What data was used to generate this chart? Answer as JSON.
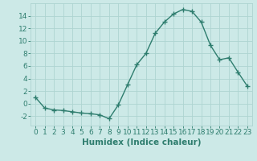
{
  "x": [
    0,
    1,
    2,
    3,
    4,
    5,
    6,
    7,
    8,
    9,
    10,
    11,
    12,
    13,
    14,
    15,
    16,
    17,
    18,
    19,
    20,
    21,
    22,
    23
  ],
  "y": [
    1,
    -0.7,
    -1.0,
    -1.1,
    -1.3,
    -1.5,
    -1.6,
    -1.8,
    -2.4,
    -0.2,
    3.0,
    6.2,
    8.0,
    11.2,
    13.0,
    14.3,
    15.0,
    14.7,
    13.0,
    9.3,
    7.0,
    7.3,
    5.0,
    2.8
  ],
  "line_color": "#2e7d6e",
  "marker": "+",
  "marker_size": 4,
  "marker_linewidth": 1.0,
  "background_color": "#cce9e7",
  "grid_color": "#aed4d1",
  "xlabel": "Humidex (Indice chaleur)",
  "xlabel_fontsize": 7.5,
  "xlim": [
    -0.5,
    23.5
  ],
  "ylim": [
    -3.5,
    16
  ],
  "yticks": [
    -2,
    0,
    2,
    4,
    6,
    8,
    10,
    12,
    14
  ],
  "xticks": [
    0,
    1,
    2,
    3,
    4,
    5,
    6,
    7,
    8,
    9,
    10,
    11,
    12,
    13,
    14,
    15,
    16,
    17,
    18,
    19,
    20,
    21,
    22,
    23
  ],
  "tick_label_fontsize": 6.5,
  "line_width": 1.0
}
